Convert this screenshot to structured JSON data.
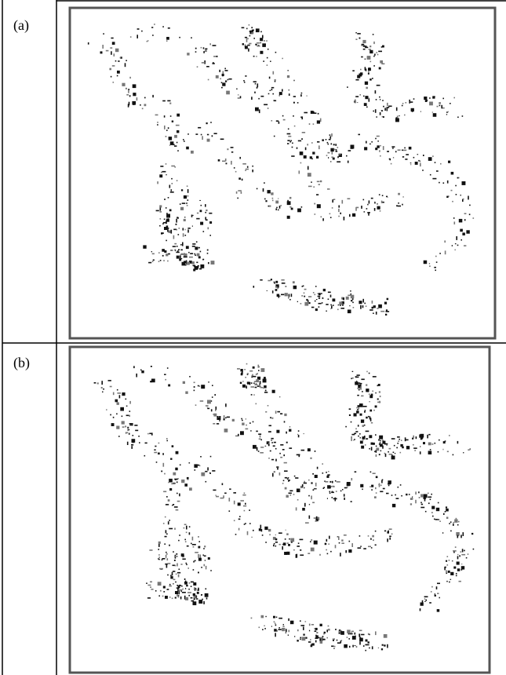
{
  "table": {
    "rows": [
      [
        "(a)"
      ],
      [
        "(b)"
      ]
    ]
  }
}
